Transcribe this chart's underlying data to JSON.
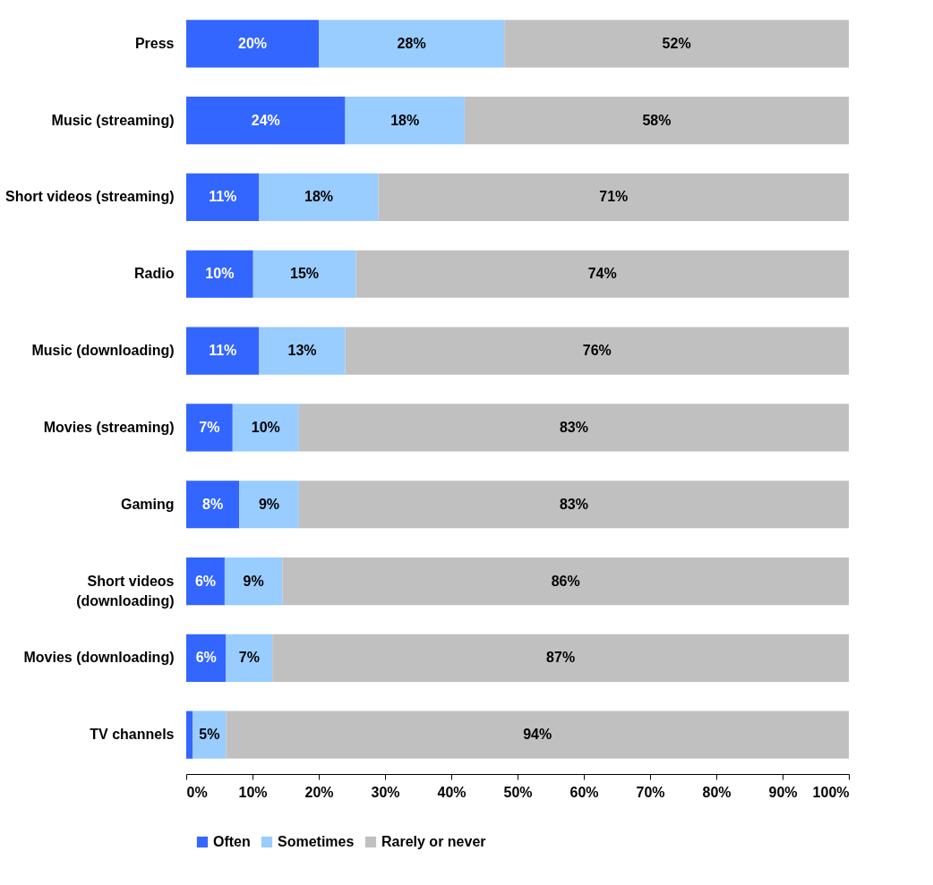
{
  "chart_data": {
    "type": "bar",
    "orientation": "horizontal",
    "stacked": true,
    "categories": [
      "Press",
      "Music (streaming)",
      "Short videos (streaming)",
      "Radio",
      "Music (downloading)",
      "Movies (streaming)",
      "Gaming",
      "Short videos\n(downloading)",
      "Movies (downloading)",
      "TV channels"
    ],
    "series": [
      {
        "name": "Often",
        "color": "#3366ff",
        "values": [
          20,
          24,
          11,
          10.1,
          11,
          7,
          8,
          5.8,
          6,
          1
        ],
        "value_labels": [
          "20%",
          "24%",
          "11%",
          "10%",
          "11%",
          "7%",
          "8%",
          "6%",
          "6%",
          null
        ]
      },
      {
        "name": "Sometimes",
        "color": "#99ccff",
        "values": [
          28,
          18,
          18,
          15.5,
          13,
          10,
          9,
          8.7,
          7,
          5
        ],
        "value_labels": [
          "28%",
          "18%",
          "18%",
          "15%",
          "13%",
          "10%",
          "9%",
          "9%",
          "7%",
          "5%"
        ]
      },
      {
        "name": "Rarely or never",
        "color": "#c0c0c0",
        "values": [
          52,
          58,
          71,
          74.4,
          76,
          83,
          83,
          85.5,
          87,
          94
        ],
        "value_labels": [
          "52%",
          "58%",
          "71%",
          "74%",
          "76%",
          "83%",
          "83%",
          "86%",
          "87%",
          "94%"
        ]
      }
    ],
    "xlim": [
      0,
      100
    ],
    "xticks": [
      {
        "value": 0,
        "label": "0%"
      },
      {
        "value": 10,
        "label": "10%"
      },
      {
        "value": 20,
        "label": "20%"
      },
      {
        "value": 30,
        "label": "30%"
      },
      {
        "value": 40,
        "label": "40%"
      },
      {
        "value": 50,
        "label": "50%"
      },
      {
        "value": 60,
        "label": "60%"
      },
      {
        "value": 70,
        "label": "70%"
      },
      {
        "value": 80,
        "label": "80%"
      },
      {
        "value": 90,
        "label": "90%"
      },
      {
        "value": 100,
        "label": "100%"
      }
    ],
    "grid": false,
    "legend": "bottom"
  }
}
